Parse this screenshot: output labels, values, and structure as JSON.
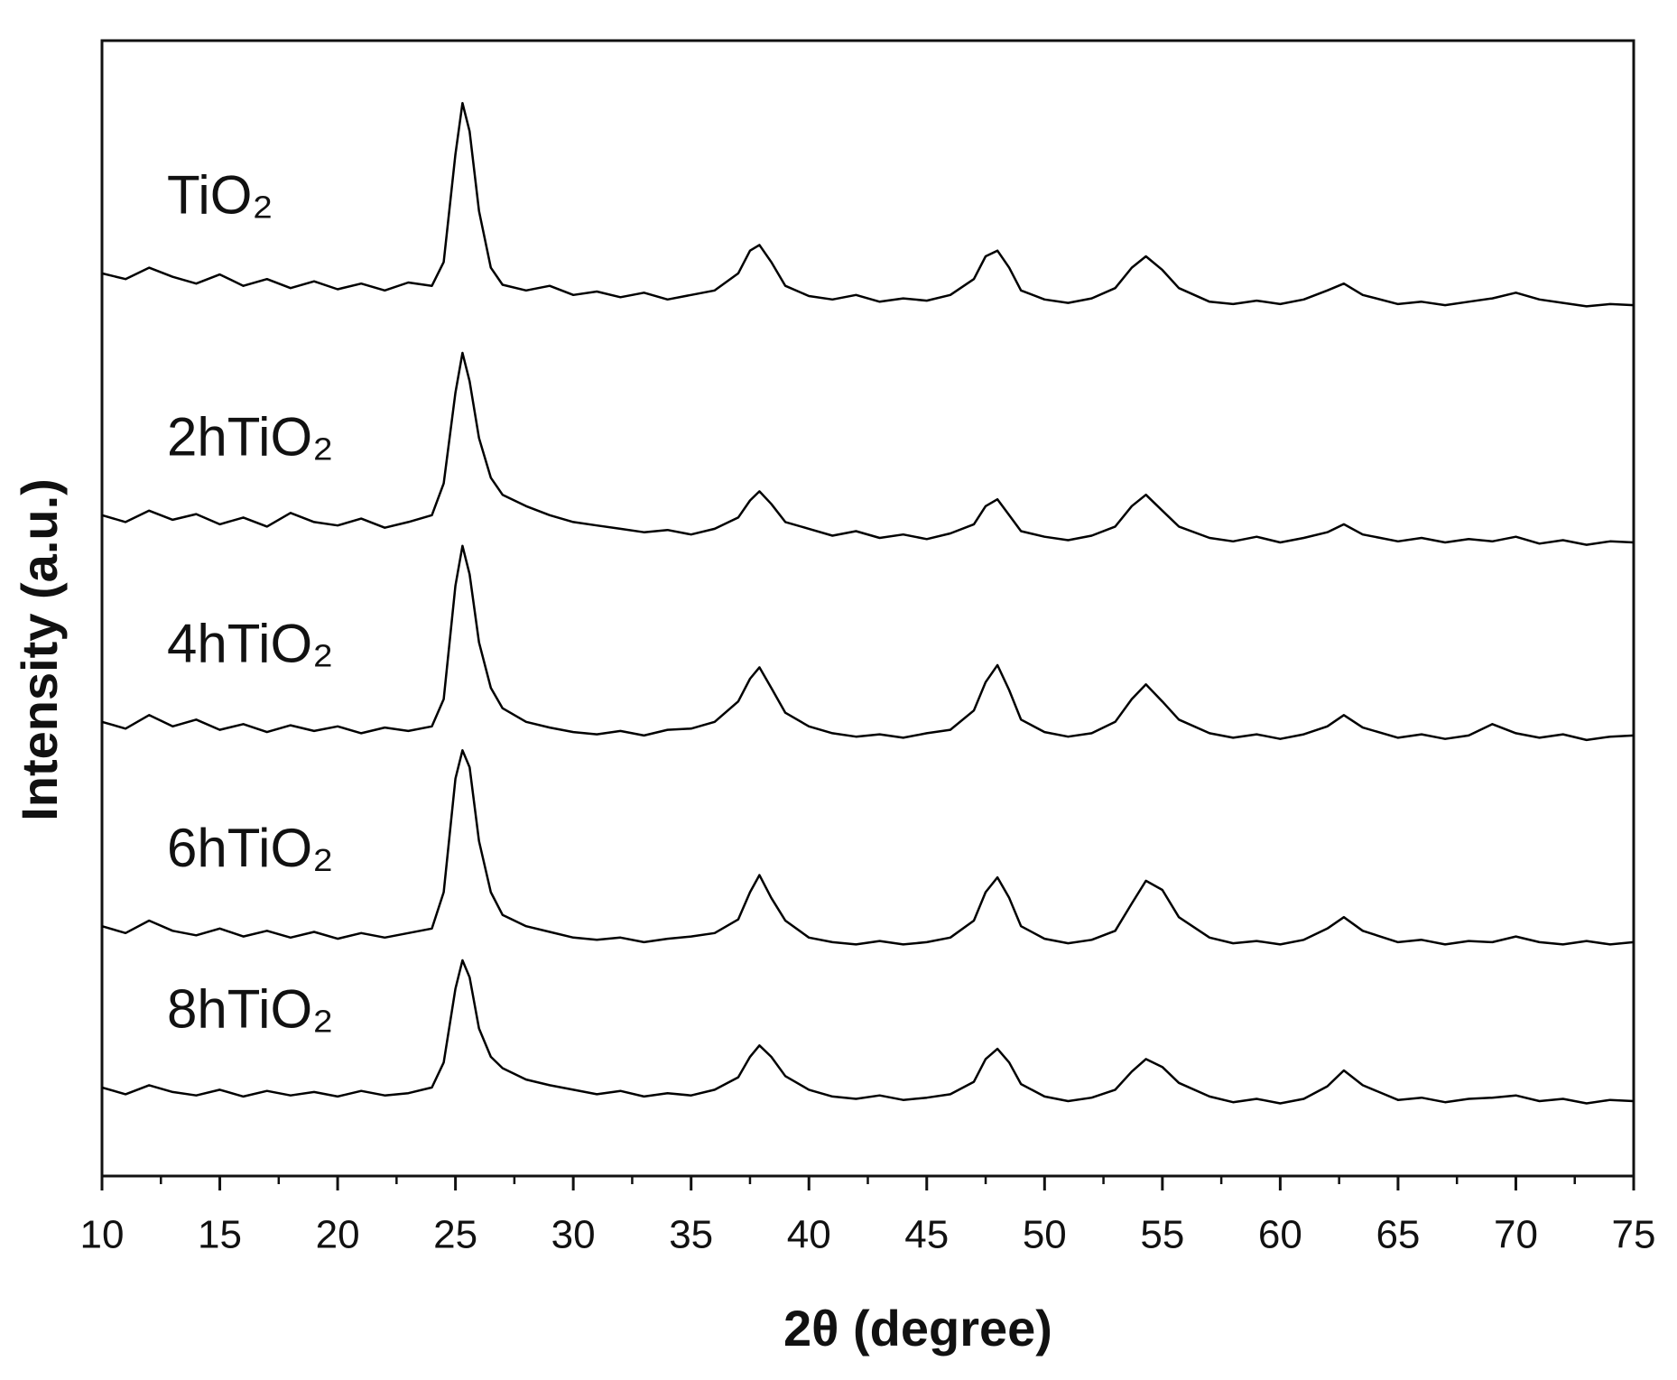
{
  "chart_data": {
    "type": "line",
    "x_label": "2θ (degree)",
    "y_label": "Intensity (a.u.)",
    "xlim": [
      10,
      75
    ],
    "xticks": [
      10,
      15,
      20,
      25,
      30,
      35,
      40,
      45,
      50,
      55,
      60,
      65,
      70,
      75
    ],
    "xticks_minor": [
      12.5,
      17.5,
      22.5,
      27.5,
      32.5,
      37.5,
      42.5,
      47.5,
      52.5,
      57.5,
      62.5,
      67.5,
      72.5
    ],
    "ylim": [
      0,
      100
    ],
    "x": [
      10,
      11,
      12,
      13,
      14,
      15,
      16,
      17,
      18,
      19,
      20,
      21,
      22,
      23,
      24,
      24.5,
      25,
      25.3,
      25.6,
      26,
      26.5,
      27,
      28,
      29,
      30,
      31,
      32,
      33,
      34,
      35,
      36,
      37,
      37.5,
      37.9,
      38.4,
      39,
      40,
      41,
      42,
      43,
      44,
      45,
      46,
      47,
      47.5,
      48,
      48.5,
      49,
      50,
      51,
      52,
      53,
      53.7,
      54.3,
      55,
      55.7,
      57,
      58,
      59,
      60,
      61,
      62,
      62.7,
      63.5,
      65,
      66,
      67,
      68,
      69,
      70,
      71,
      72,
      73,
      74,
      75
    ],
    "series": [
      {
        "name": "TiO₂",
        "color": "#000000",
        "values": [
          79.5,
          79,
          80,
          79.2,
          78.6,
          79.4,
          78.4,
          79,
          78.2,
          78.8,
          78.1,
          78.6,
          78,
          78.7,
          78.4,
          80.5,
          90,
          94.5,
          92,
          85,
          80,
          78.5,
          78,
          78.4,
          77.6,
          77.9,
          77.4,
          77.8,
          77.2,
          77.6,
          78,
          79.5,
          81.5,
          82,
          80.5,
          78.4,
          77.5,
          77.2,
          77.6,
          77,
          77.3,
          77.1,
          77.6,
          79,
          81,
          81.5,
          80,
          78,
          77.2,
          76.9,
          77.3,
          78.2,
          80,
          81,
          79.8,
          78.2,
          77,
          76.8,
          77.1,
          76.8,
          77.2,
          78,
          78.6,
          77.6,
          76.8,
          77,
          76.7,
          77,
          77.3,
          77.8,
          77.2,
          76.9,
          76.6,
          76.8,
          76.7
        ]
      },
      {
        "name": "2hTiO₂",
        "color": "#000000",
        "values": [
          58.2,
          57.6,
          58.6,
          57.8,
          58.3,
          57.4,
          58,
          57.2,
          58.4,
          57.6,
          57.3,
          57.9,
          57.1,
          57.6,
          58.2,
          61,
          69,
          72.5,
          70,
          65,
          61.5,
          60,
          59,
          58.2,
          57.6,
          57.3,
          57,
          56.7,
          56.9,
          56.5,
          57,
          58,
          59.5,
          60.3,
          59.2,
          57.6,
          57,
          56.4,
          56.8,
          56.2,
          56.5,
          56.1,
          56.6,
          57.4,
          59,
          59.6,
          58.2,
          56.8,
          56.3,
          56,
          56.4,
          57.2,
          59,
          60,
          58.6,
          57.2,
          56.2,
          55.9,
          56.3,
          55.8,
          56.2,
          56.7,
          57.4,
          56.5,
          55.9,
          56.2,
          55.8,
          56.1,
          55.9,
          56.3,
          55.7,
          56,
          55.6,
          55.9,
          55.8
        ]
      },
      {
        "name": "4hTiO₂",
        "color": "#000000",
        "values": [
          40,
          39.4,
          40.6,
          39.6,
          40.2,
          39.3,
          39.8,
          39.1,
          39.7,
          39.2,
          39.6,
          39,
          39.5,
          39.2,
          39.6,
          42,
          52,
          55.5,
          53,
          47,
          43,
          41.2,
          40,
          39.5,
          39.1,
          38.9,
          39.2,
          38.8,
          39.3,
          39.4,
          40,
          41.8,
          43.8,
          44.8,
          43,
          40.8,
          39.6,
          39,
          38.7,
          38.9,
          38.6,
          39,
          39.3,
          41,
          43.5,
          45,
          42.8,
          40.2,
          39.1,
          38.7,
          39,
          40,
          42,
          43.3,
          41.8,
          40.2,
          39,
          38.6,
          38.9,
          38.5,
          38.9,
          39.6,
          40.6,
          39.5,
          38.6,
          38.9,
          38.5,
          38.8,
          39.8,
          39,
          38.6,
          38.9,
          38.4,
          38.7,
          38.8
        ]
      },
      {
        "name": "6hTiO₂",
        "color": "#000000",
        "values": [
          22,
          21.4,
          22.5,
          21.6,
          21.2,
          21.8,
          21.1,
          21.6,
          21,
          21.5,
          20.9,
          21.4,
          21,
          21.4,
          21.8,
          25,
          35,
          37.5,
          36,
          29.5,
          25,
          23,
          22,
          21.5,
          21,
          20.8,
          21,
          20.6,
          20.9,
          21.1,
          21.4,
          22.6,
          25,
          26.5,
          24.5,
          22.5,
          21,
          20.6,
          20.4,
          20.7,
          20.4,
          20.6,
          21,
          22.5,
          25,
          26.3,
          24.5,
          22,
          20.9,
          20.5,
          20.8,
          21.6,
          24,
          26,
          25.2,
          22.8,
          21,
          20.5,
          20.7,
          20.4,
          20.8,
          21.8,
          22.8,
          21.6,
          20.6,
          20.8,
          20.4,
          20.7,
          20.6,
          21.1,
          20.6,
          20.4,
          20.7,
          20.4,
          20.6
        ]
      },
      {
        "name": "8hTiO₂",
        "color": "#000000",
        "values": [
          7.8,
          7.2,
          8,
          7.4,
          7.1,
          7.6,
          7,
          7.5,
          7.1,
          7.4,
          7,
          7.5,
          7.1,
          7.3,
          7.8,
          10,
          16.5,
          19,
          17.5,
          13,
          10.5,
          9.5,
          8.5,
          8,
          7.6,
          7.2,
          7.5,
          7,
          7.3,
          7.1,
          7.6,
          8.7,
          10.5,
          11.5,
          10.5,
          8.8,
          7.6,
          7,
          6.8,
          7.1,
          6.7,
          6.9,
          7.2,
          8.3,
          10.3,
          11.2,
          10,
          8.1,
          7,
          6.6,
          6.9,
          7.6,
          9.2,
          10.3,
          9.6,
          8.2,
          7,
          6.5,
          6.8,
          6.4,
          6.8,
          7.9,
          9.3,
          8,
          6.7,
          6.9,
          6.5,
          6.8,
          6.9,
          7.1,
          6.6,
          6.8,
          6.4,
          6.7,
          6.6
        ]
      }
    ]
  }
}
